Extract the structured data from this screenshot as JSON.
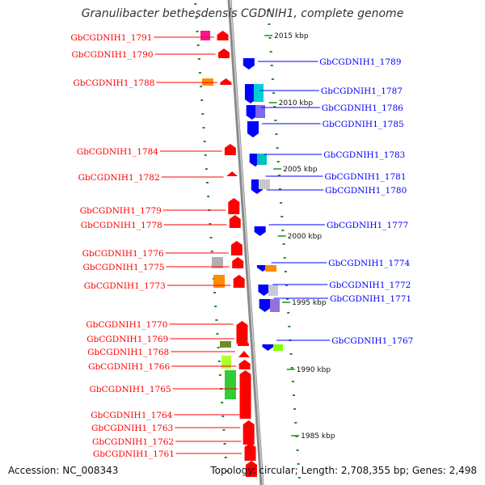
{
  "title": "Granulibacter bethesdensis CGDNIH1, complete genome",
  "footer": {
    "accession": "Accession: NC_008343",
    "topology": "Topology: circular; Length: 2,708,355 bp; Genes: 2,498"
  },
  "colors": {
    "forward_strand": "#ff0000",
    "reverse_strand": "#0000ff",
    "backbone": "#888888",
    "gc_dots": "#228b22"
  },
  "position_ticks": [
    "2015 kbp",
    "2010 kbp",
    "2005 kbp",
    "2000 kbp",
    "1995 kbp",
    "1990 kbp",
    "1985 kbp"
  ],
  "forward_gene_labels": [
    "GbCGDNIH1_1791",
    "GbCGDNIH1_1790",
    "GbCGDNIH1_1788",
    "GbCGDNIH1_1784",
    "GbCGDNIH1_1782",
    "GbCGDNIH1_1779",
    "GbCGDNIH1_1778",
    "GbCGDNIH1_1776",
    "GbCGDNIH1_1775",
    "GbCGDNIH1_1773",
    "GbCGDNIH1_1770",
    "GbCGDNIH1_1769",
    "GbCGDNIH1_1768",
    "GbCGDNIH1_1766",
    "GbCGDNIH1_1765",
    "GbCGDNIH1_1764",
    "GbCGDNIH1_1763",
    "GbCGDNIH1_1762",
    "GbCGDNIH1_1761"
  ],
  "reverse_gene_labels": [
    "GbCGDNIH1_1789",
    "GbCGDNIH1_1787",
    "GbCGDNIH1_1786",
    "GbCGDNIH1_1785",
    "GbCGDNIH1_1783",
    "GbCGDNIH1_1781",
    "GbCGDNIH1_1780",
    "GbCGDNIH1_1777",
    "GbCGDNIH1_1774",
    "GbCGDNIH1_1772",
    "GbCGDNIH1_1771",
    "GbCGDNIH1_1767"
  ]
}
